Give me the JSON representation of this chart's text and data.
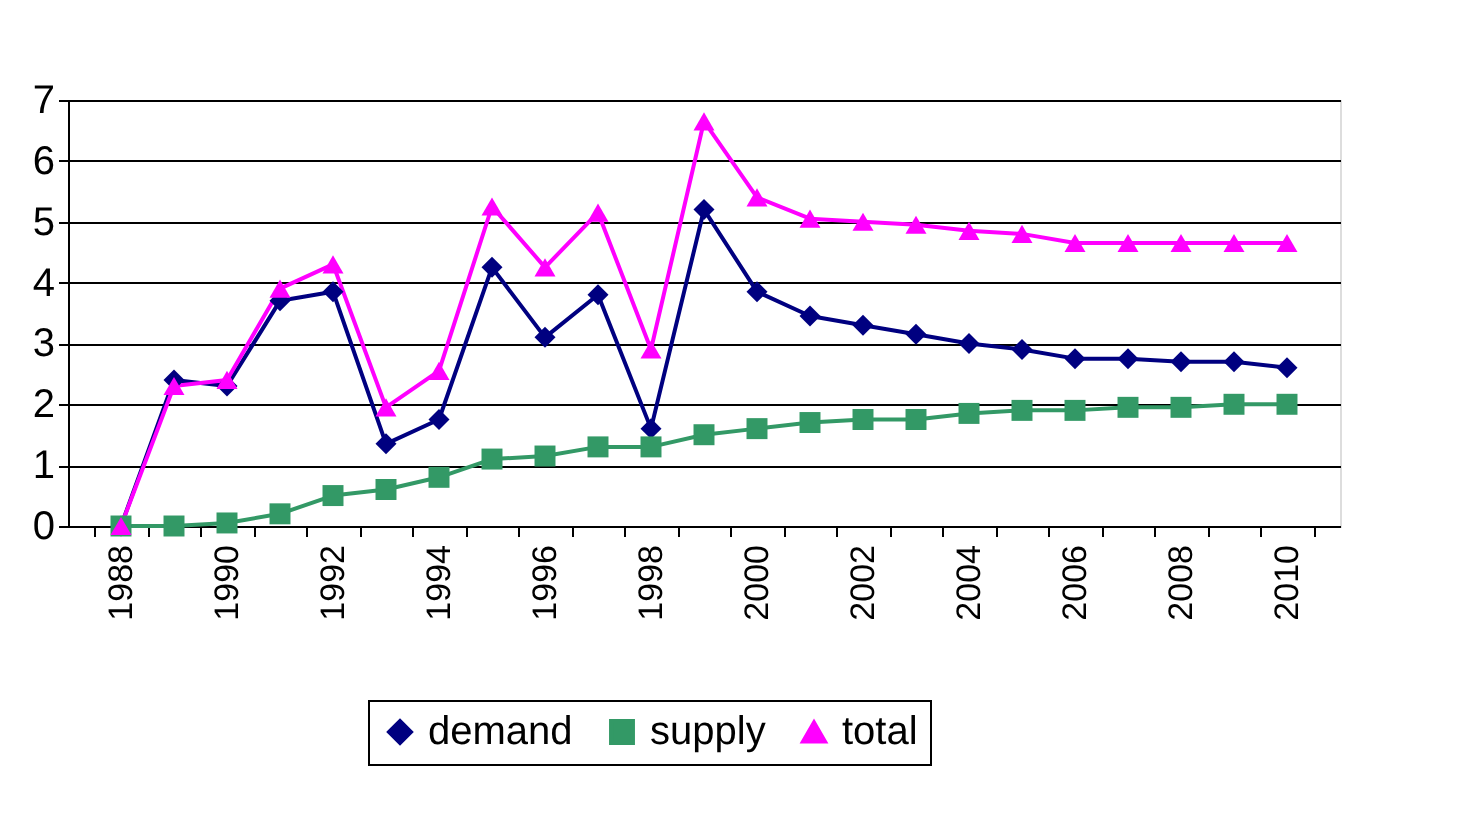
{
  "chart_data": {
    "type": "line",
    "categories": [
      "1988",
      null,
      "1990",
      null,
      "1992",
      null,
      "1994",
      null,
      "1996",
      null,
      "1998",
      null,
      "2000",
      null,
      "2002",
      null,
      "2004",
      null,
      "2006",
      null,
      "2008",
      null,
      "2010"
    ],
    "series": [
      {
        "name": "demand",
        "color": "#000080",
        "marker": "diamond",
        "values": [
          0,
          2.4,
          2.3,
          3.7,
          3.85,
          1.35,
          1.75,
          4.25,
          3.1,
          3.8,
          1.6,
          5.2,
          3.85,
          3.45,
          3.3,
          3.15,
          3.0,
          2.9,
          2.75,
          2.75,
          2.7,
          2.7,
          2.6
        ]
      },
      {
        "name": "supply",
        "color": "#339966",
        "marker": "square",
        "values": [
          0,
          0,
          0.05,
          0.2,
          0.5,
          0.6,
          0.8,
          1.1,
          1.15,
          1.3,
          1.3,
          1.5,
          1.6,
          1.7,
          1.75,
          1.75,
          1.85,
          1.9,
          1.9,
          1.95,
          1.95,
          2.0,
          2.0
        ]
      },
      {
        "name": "total",
        "color": "#ff00ff",
        "marker": "triangle",
        "values": [
          0,
          2.3,
          2.4,
          3.9,
          4.3,
          1.95,
          2.55,
          5.25,
          4.25,
          5.15,
          2.9,
          6.65,
          5.4,
          5.05,
          5.0,
          4.95,
          4.85,
          4.8,
          4.65,
          4.65,
          4.65,
          4.65,
          4.65
        ]
      }
    ],
    "ylim": [
      0,
      7
    ],
    "yticks": [
      0,
      1,
      2,
      3,
      4,
      5,
      6,
      7
    ],
    "grid": "y",
    "legend": "bottom",
    "line_style": "solid"
  }
}
